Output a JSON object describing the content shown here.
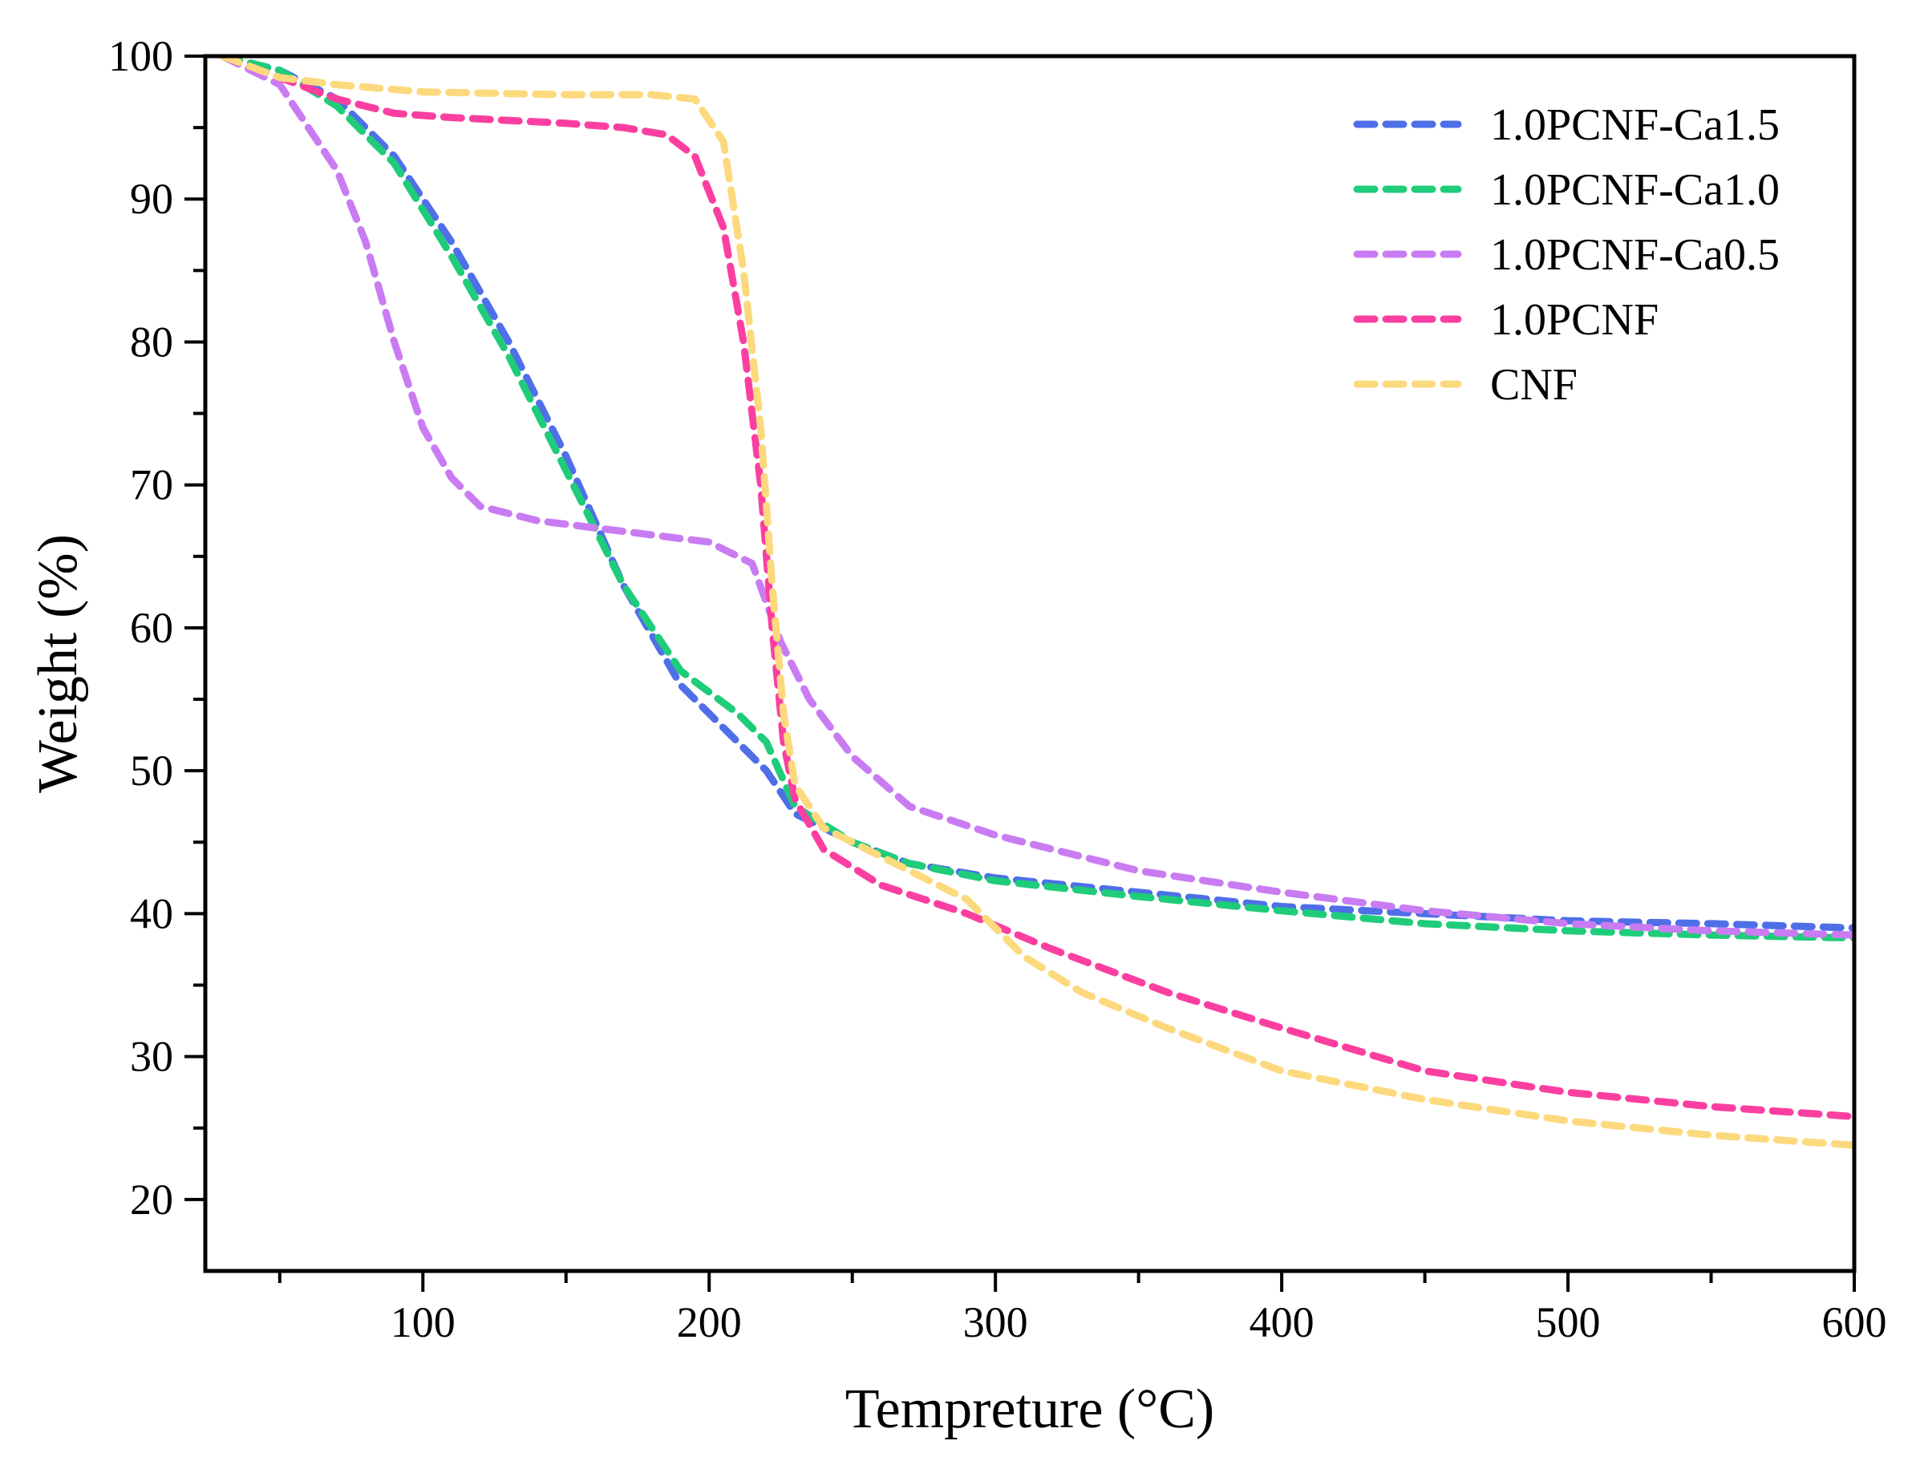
{
  "chart_data": {
    "type": "line",
    "title": "",
    "xlabel": "Tempreture (°C)",
    "ylabel": "Weight (%)",
    "xlim": [
      24,
      600
    ],
    "ylim": [
      15,
      100
    ],
    "xticks": [
      100,
      200,
      300,
      400,
      500,
      600
    ],
    "yticks": [
      20,
      30,
      40,
      50,
      60,
      70,
      80,
      90,
      100
    ],
    "xtick_labels": [
      "100",
      "200",
      "300",
      "400",
      "500",
      "600"
    ],
    "ytick_labels": [
      "20",
      "30",
      "40",
      "50",
      "60",
      "70",
      "80",
      "90",
      "100"
    ],
    "grid": false,
    "legend_position": "top-right",
    "line_style": "dashed",
    "series": [
      {
        "name": "1.0PCNF-Ca1.5",
        "color": "#4f6fe8",
        "x": [
          30,
          50,
          70,
          90,
          110,
          130,
          150,
          170,
          190,
          210,
          220,
          230,
          250,
          270,
          300,
          350,
          400,
          450,
          500,
          550,
          600
        ],
        "y": [
          100,
          99,
          97,
          93,
          87,
          80,
          72,
          63,
          56,
          52,
          50,
          47,
          45,
          43.5,
          42.5,
          41.5,
          40.5,
          40,
          39.5,
          39.3,
          39
        ]
      },
      {
        "name": "1.0PCNF-Ca1.0",
        "color": "#1fcc7a",
        "x": [
          30,
          50,
          70,
          90,
          110,
          130,
          150,
          170,
          190,
          210,
          220,
          230,
          250,
          270,
          300,
          350,
          400,
          450,
          500,
          550,
          600
        ],
        "y": [
          100,
          99,
          96.5,
          92.5,
          86,
          79,
          71,
          63,
          57,
          54,
          52,
          47.5,
          45,
          43.5,
          42.3,
          41.2,
          40.2,
          39.3,
          38.8,
          38.5,
          38.3
        ]
      },
      {
        "name": "1.0PCNF-Ca0.5",
        "color": "#c97cf2",
        "x": [
          30,
          50,
          70,
          80,
          90,
          100,
          110,
          120,
          140,
          160,
          180,
          200,
          215,
          225,
          235,
          250,
          270,
          300,
          350,
          400,
          450,
          500,
          550,
          600
        ],
        "y": [
          100,
          98,
          92,
          87,
          80,
          74,
          70.5,
          68.5,
          67.5,
          67,
          66.5,
          66,
          64.5,
          59,
          55,
          51,
          47.5,
          45.5,
          43,
          41.5,
          40.2,
          39.3,
          38.8,
          38.5
        ]
      },
      {
        "name": "1.0PCNF",
        "color": "#fb3fa0",
        "x": [
          30,
          50,
          70,
          90,
          110,
          130,
          150,
          170,
          185,
          195,
          205,
          212,
          218,
          222,
          226,
          230,
          240,
          260,
          290,
          320,
          360,
          400,
          450,
          500,
          550,
          600
        ],
        "y": [
          100,
          98.5,
          97,
          96,
          95.7,
          95.5,
          95.3,
          95,
          94.5,
          93,
          88,
          80,
          70,
          60,
          52,
          48,
          44.5,
          42,
          40,
          37.5,
          34.5,
          32,
          29,
          27.5,
          26.5,
          25.8
        ]
      },
      {
        "name": "CNF",
        "color": "#fdd97e",
        "x": [
          30,
          50,
          70,
          100,
          150,
          180,
          195,
          205,
          212,
          218,
          222,
          226,
          230,
          240,
          260,
          290,
          310,
          330,
          360,
          400,
          450,
          500,
          550,
          600
        ],
        "y": [
          100,
          98.5,
          98,
          97.5,
          97.3,
          97.3,
          97,
          94,
          85,
          74,
          63,
          54,
          49,
          46,
          44,
          41,
          37,
          34.5,
          32,
          29,
          27,
          25.5,
          24.5,
          23.8
        ]
      }
    ]
  }
}
